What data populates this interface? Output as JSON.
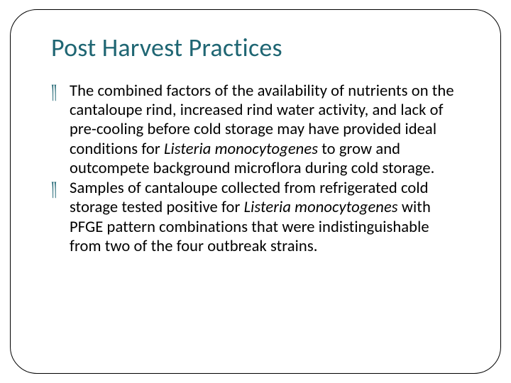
{
  "slide": {
    "title": "Post Harvest Practices",
    "title_color": "#1f6673",
    "title_fontsize": 36,
    "body_fontsize": 22.5,
    "body_color": "#000000",
    "bullet_color": "#1f6673",
    "bullet_glyph": "༎",
    "frame_border_color": "#000000",
    "frame_border_radius": 38,
    "background_color": "#ffffff",
    "bullets": [
      {
        "before": "The combined factors of the availability of nutrients on the cantaloupe rind, increased rind water activity, and lack of pre-cooling before cold storage may have provided ideal conditions for ",
        "italic": "Listeria monocytogenes",
        "after": " to grow and outcompete background microflora during cold storage."
      },
      {
        "before": "Samples of cantaloupe collected from refrigerated cold storage tested positive for ",
        "italic": "Listeria monocytogenes",
        "after": " with PFGE pattern combinations that were indistinguishable from two of the four outbreak strains."
      }
    ]
  }
}
